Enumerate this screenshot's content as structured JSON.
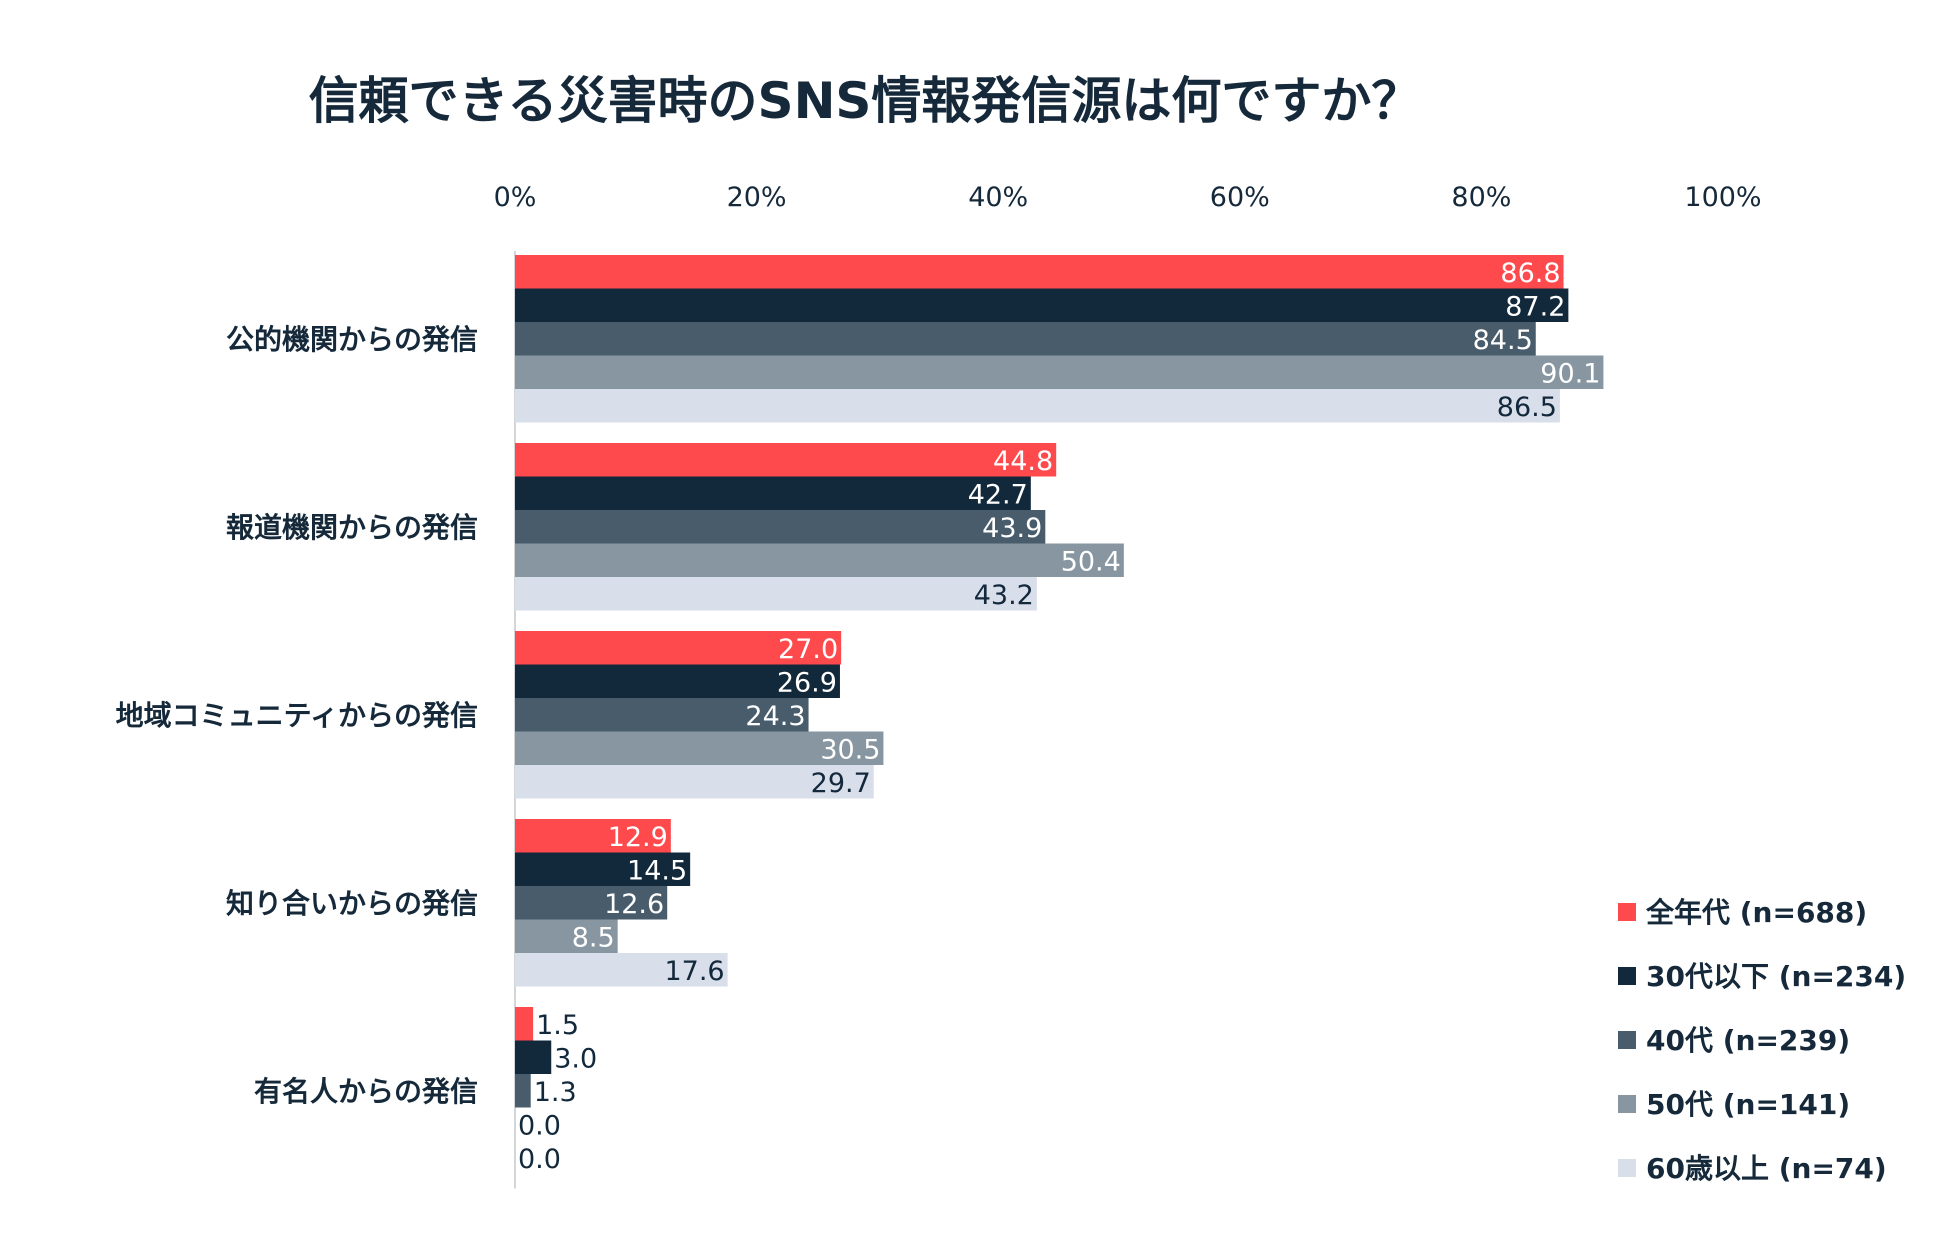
{
  "chart_data": {
    "type": "bar",
    "orientation": "horizontal",
    "title": "信頼できる災害時のSNS情報発信源は何ですか？",
    "xlabel": "",
    "ylabel": "",
    "xlim": [
      0,
      100
    ],
    "x_ticks": [
      0,
      20,
      40,
      60,
      80,
      100
    ],
    "x_tick_labels": [
      "0%",
      "20%",
      "40%",
      "60%",
      "80%",
      "100%"
    ],
    "grid": false,
    "legend_position": "bottom-right",
    "categories": [
      "公的機関からの発信",
      "報道機関からの発信",
      "地域コミュニティからの発信",
      "知り合いからの発信",
      "有名人からの発信"
    ],
    "series": [
      {
        "name": "全年代 (n=688)",
        "color": "#ff4a4d",
        "label_color": "#ffffff",
        "values": [
          86.8,
          44.8,
          27.0,
          12.9,
          1.5
        ]
      },
      {
        "name": "30代以下 (n=234)",
        "color": "#12283b",
        "label_color": "#ffffff",
        "values": [
          87.2,
          42.7,
          26.9,
          14.5,
          3.0
        ]
      },
      {
        "name": "40代 (n=239)",
        "color": "#485c6c",
        "label_color": "#ffffff",
        "values": [
          84.5,
          43.9,
          24.3,
          12.6,
          1.3
        ]
      },
      {
        "name": "50代 (n=141)",
        "color": "#8796a0",
        "label_color": "#ffffff",
        "values": [
          90.1,
          50.4,
          30.5,
          8.5,
          0.0
        ]
      },
      {
        "name": "60歳以上 (n=74)",
        "color": "#d9deeb",
        "label_color": "#12283b",
        "values": [
          86.5,
          43.2,
          29.7,
          17.6,
          0.0
        ]
      }
    ]
  }
}
